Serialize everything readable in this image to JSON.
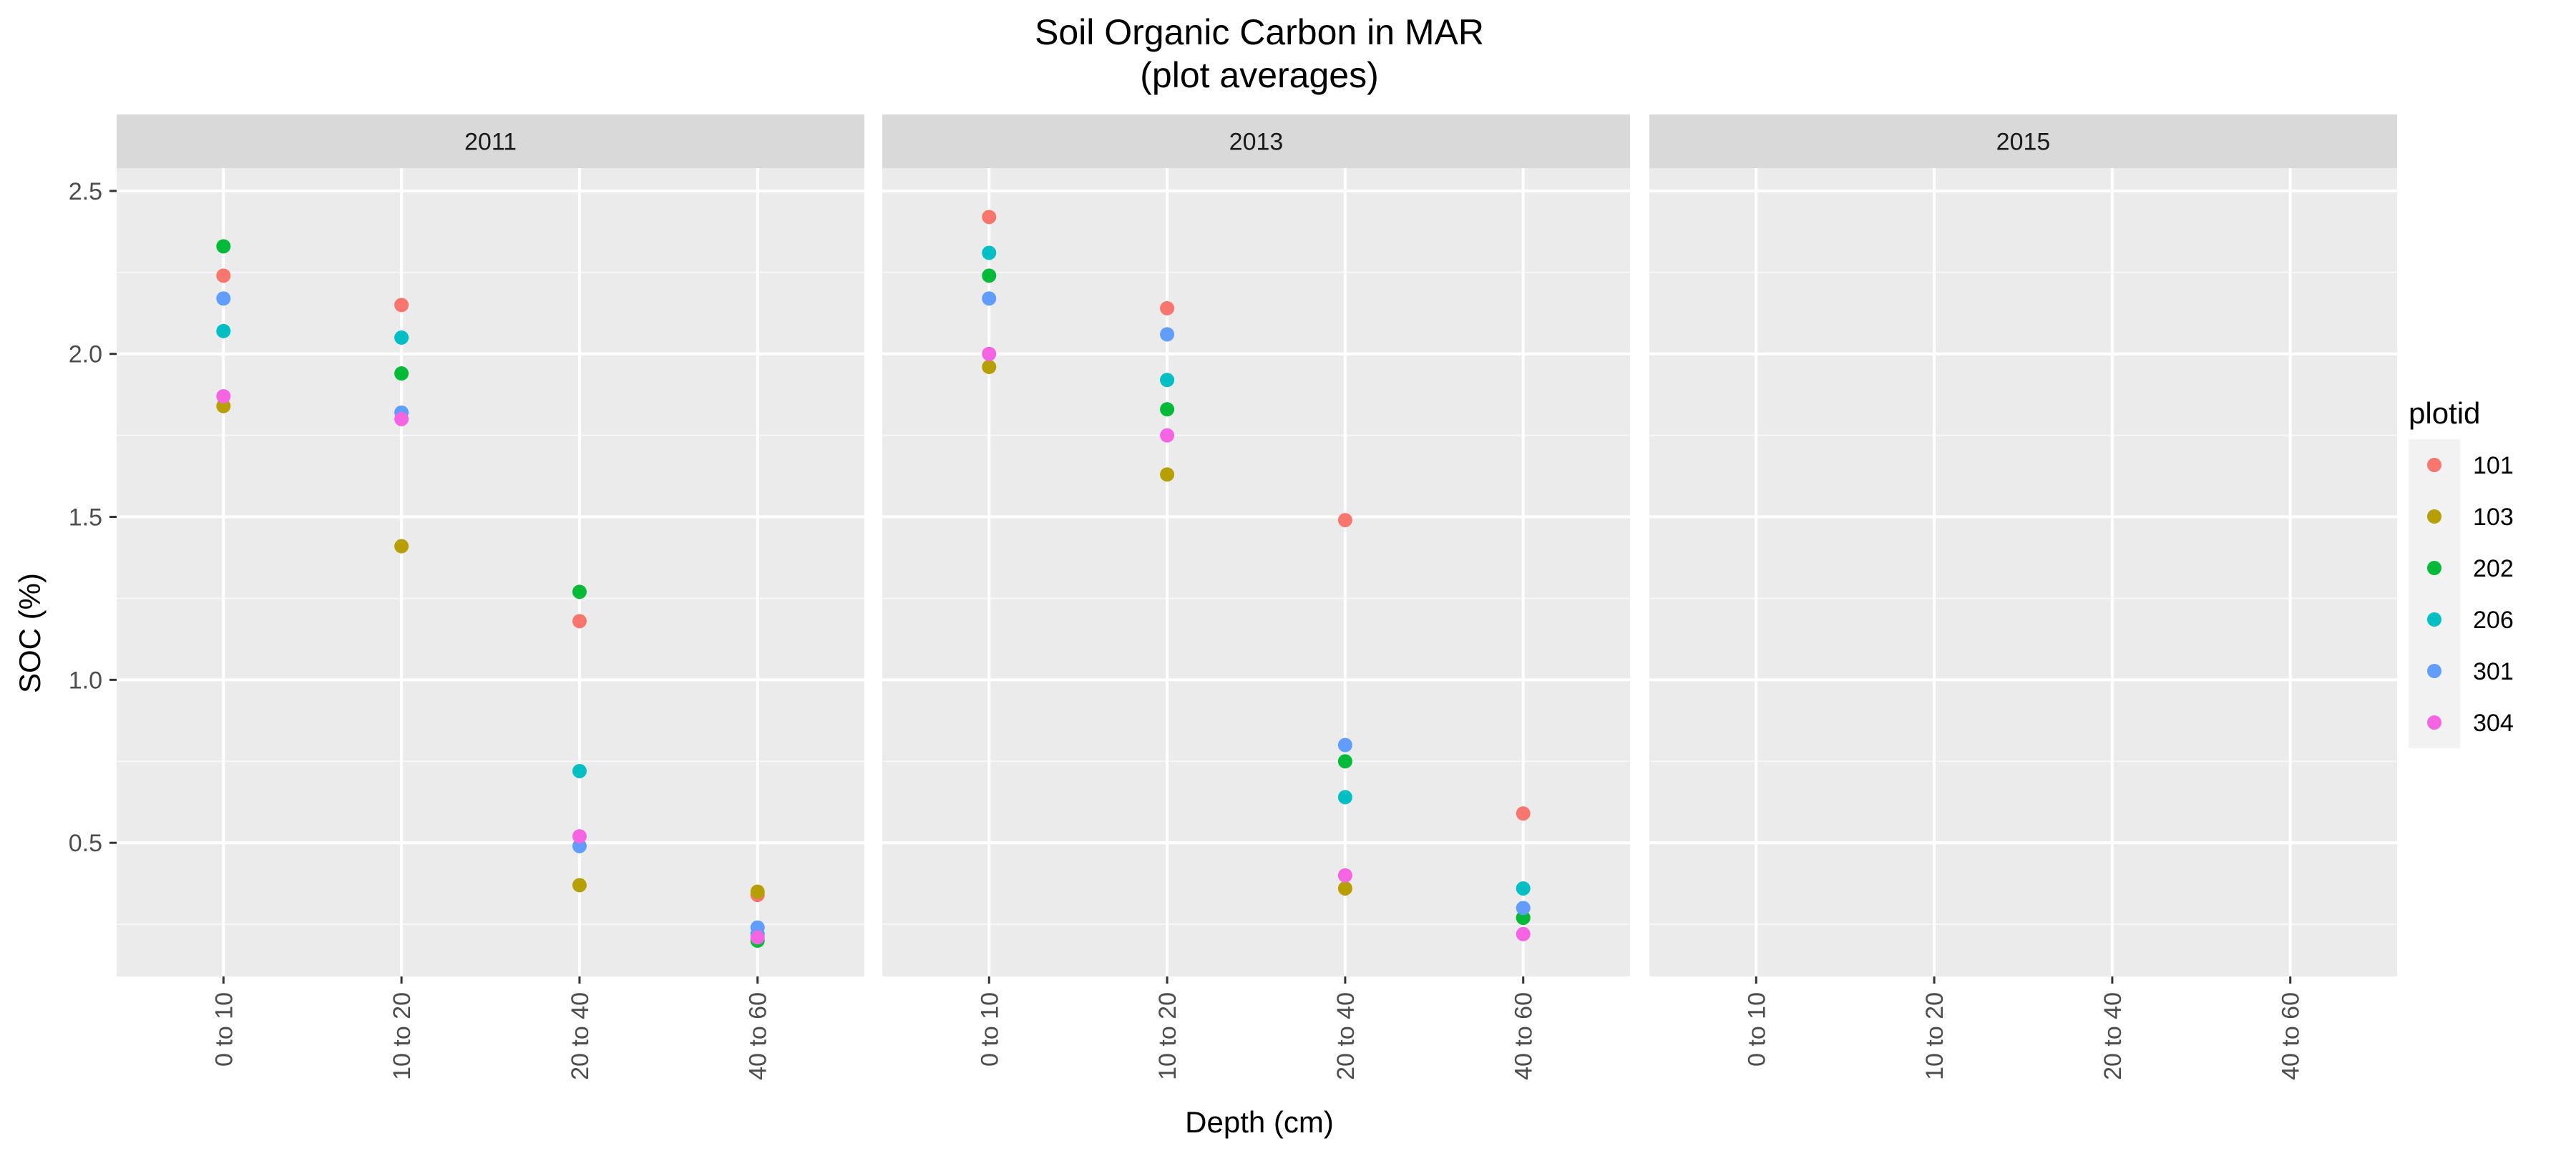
{
  "chart_data": {
    "type": "scatter",
    "title": "Soil Organic Carbon in MAR",
    "subtitle": "(plot averages)",
    "xlabel": "Depth (cm)",
    "ylabel": "SOC (%)",
    "facet_by": "year",
    "categories": [
      "0 to 10",
      "10 to 20",
      "20 to 40",
      "40 to 60"
    ],
    "y_ticks": [
      "0.5",
      "1.0",
      "1.5",
      "2.0",
      "2.5"
    ],
    "ylim": [
      0.09,
      2.57
    ],
    "grid": true,
    "legend_title": "plotid",
    "legend_position": "right",
    "panels": [
      {
        "label": "2011",
        "series": [
          {
            "name": "101",
            "color": "#F8766D",
            "values": [
              2.24,
              2.15,
              1.18,
              0.34
            ]
          },
          {
            "name": "103",
            "color": "#B79F00",
            "values": [
              1.84,
              1.41,
              0.37,
              0.35
            ]
          },
          {
            "name": "202",
            "color": "#00BA38",
            "values": [
              2.33,
              1.94,
              1.27,
              0.2
            ]
          },
          {
            "name": "206",
            "color": "#00BFC4",
            "values": [
              2.07,
              2.05,
              0.72,
              0.22
            ]
          },
          {
            "name": "301",
            "color": "#619CFF",
            "values": [
              2.17,
              1.82,
              0.49,
              0.24
            ]
          },
          {
            "name": "304",
            "color": "#F564E3",
            "values": [
              1.87,
              1.8,
              0.52,
              0.21
            ]
          }
        ]
      },
      {
        "label": "2013",
        "series": [
          {
            "name": "101",
            "color": "#F8766D",
            "values": [
              2.42,
              2.14,
              1.49,
              0.59
            ]
          },
          {
            "name": "103",
            "color": "#B79F00",
            "values": [
              1.96,
              1.63,
              0.36,
              0.27
            ]
          },
          {
            "name": "202",
            "color": "#00BA38",
            "values": [
              2.24,
              1.83,
              0.75,
              0.27
            ]
          },
          {
            "name": "206",
            "color": "#00BFC4",
            "values": [
              2.31,
              1.92,
              0.64,
              0.36
            ]
          },
          {
            "name": "301",
            "color": "#619CFF",
            "values": [
              2.17,
              2.06,
              0.8,
              0.3
            ]
          },
          {
            "name": "304",
            "color": "#F564E3",
            "values": [
              2.0,
              1.75,
              0.4,
              0.22
            ]
          }
        ]
      },
      {
        "label": "2015",
        "series": []
      }
    ],
    "legend": [
      {
        "name": "101",
        "color": "#F8766D"
      },
      {
        "name": "103",
        "color": "#B79F00"
      },
      {
        "name": "202",
        "color": "#00BA38"
      },
      {
        "name": "206",
        "color": "#00BFC4"
      },
      {
        "name": "301",
        "color": "#619CFF"
      },
      {
        "name": "304",
        "color": "#F564E3"
      }
    ]
  }
}
